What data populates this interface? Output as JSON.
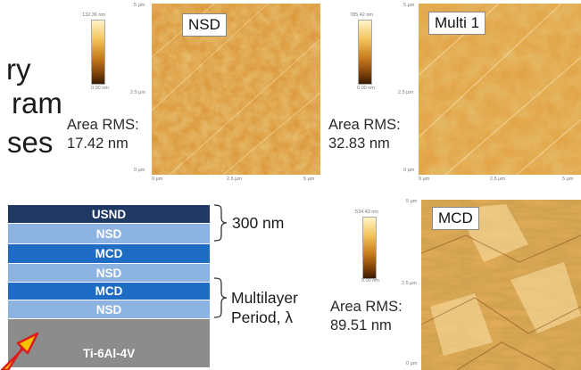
{
  "fragments": {
    "line1": "ry",
    "line2": "ram",
    "line3": "ses"
  },
  "nsd": {
    "label": "NSD",
    "rms_title": "Area RMS:",
    "rms_value": "17.42 nm",
    "scale_top": "132.36 nm",
    "scale_bottom": "0.00 nm",
    "y_top": "5 µm",
    "y_mid": "2.5 µm",
    "y_bot": "0 µm",
    "x_left": "0 µm",
    "x_mid": "2.5 µm",
    "x_right": "5 µm"
  },
  "multi1": {
    "label": "Multi 1",
    "rms_title": "Area RMS:",
    "rms_value": "32.83 nm",
    "scale_top": "785.42 nm",
    "scale_bottom": "0.00 nm",
    "y_top": "5 µm",
    "y_mid": "2.5 µm",
    "y_bot": "0 µm",
    "x_left": "0 µm",
    "x_mid": "2.5 µm",
    "x_right": "5 µm"
  },
  "mcd": {
    "label": "MCD",
    "rms_title": "Area RMS:",
    "rms_value": "89.51 nm",
    "scale_top": "534.43 nm",
    "scale_bottom": "0.00 nm",
    "y_top": "5 µm",
    "y_mid": "2.5 µm",
    "y_bot": "0 µm"
  },
  "stack": {
    "layers": [
      "USND",
      "NSD",
      "MCD",
      "NSD",
      "MCD",
      "NSD",
      "Ti-6Al-4V"
    ],
    "colors": {
      "usnd": "#1f3864",
      "nsd": "#8db3e2",
      "mcd": "#1f6cc4",
      "substrate": "#8c8c8c"
    },
    "brace_top": "300 nm",
    "brace_mid_line1": "Multilayer",
    "brace_mid_line2": "Period, λ"
  },
  "arrow_icon": "diagonal-arrow-icon"
}
